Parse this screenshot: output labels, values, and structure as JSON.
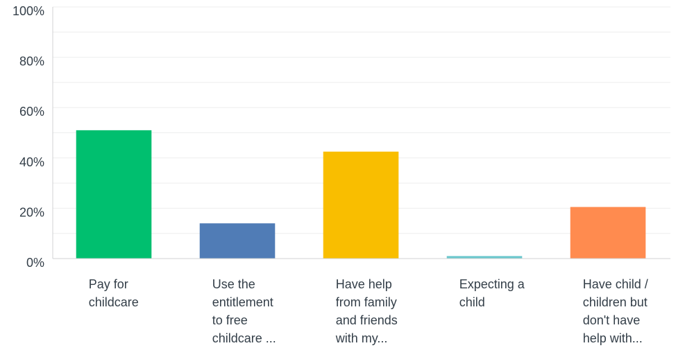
{
  "chart_data": {
    "type": "bar",
    "title": "",
    "xlabel": "",
    "ylabel": "",
    "ylim": [
      0,
      100
    ],
    "y_ticks": [
      "0%",
      "20%",
      "40%",
      "60%",
      "80%",
      "100%"
    ],
    "grid": true,
    "categories": [
      [
        "Pay for",
        "childcare"
      ],
      [
        "Use the",
        "entitlement",
        "to free",
        "childcare ..."
      ],
      [
        "Have help",
        "from family",
        "and friends",
        "with my..."
      ],
      [
        "Expecting a",
        "child"
      ],
      [
        "Have child /",
        "children but",
        "don't have",
        "help with..."
      ]
    ],
    "values": [
      51,
      14,
      42.5,
      1,
      20.5
    ],
    "colors": [
      "#00bf6f",
      "#507cb6",
      "#f9be00",
      "#6bc8cd",
      "#ff8b4f"
    ],
    "axis_color": "#d0d2d3",
    "grid_color": "#edeeee"
  }
}
